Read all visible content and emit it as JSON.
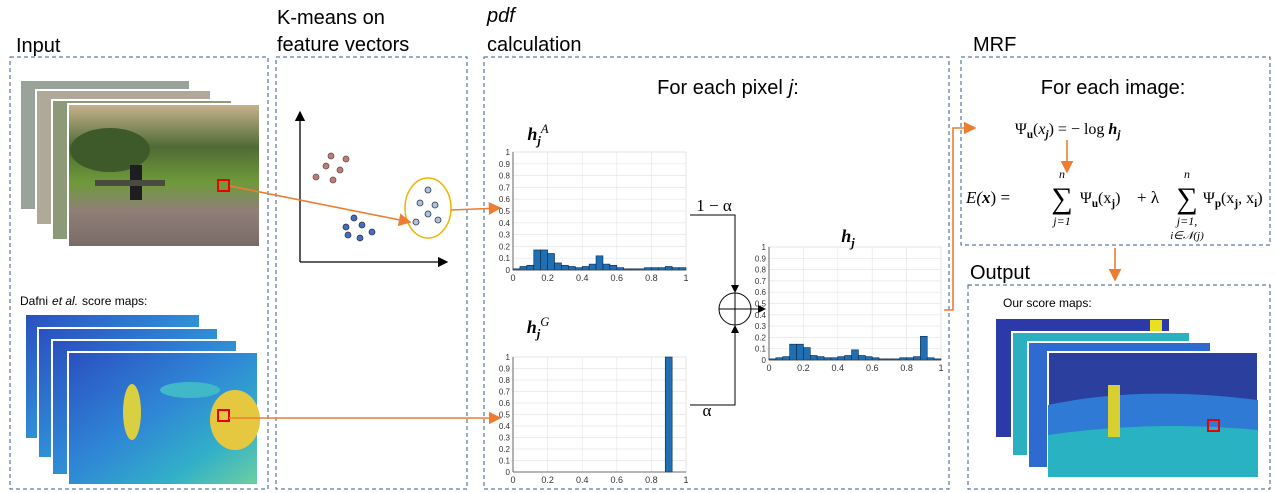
{
  "panels": {
    "input": "Input",
    "kmeans": [
      "K-means on",
      "feature vectors"
    ],
    "pdf": [
      "pdf",
      "calculation"
    ],
    "mrf": "MRF",
    "output": "Output"
  },
  "input_caption": [
    "Dafni",
    "et al.",
    "score maps:"
  ],
  "pixel_heading": [
    "For each pixel",
    "j",
    ":"
  ],
  "image_heading": "For each image:",
  "weights": {
    "upper": "1 − α",
    "lower": "α"
  },
  "output_caption": "Our score maps:",
  "unary": [
    "Ψ",
    "u",
    "(",
    "x",
    "j",
    ") = − log ",
    "h",
    "j"
  ],
  "energy": {
    "lhs": [
      "E(",
      "x",
      ") = "
    ],
    "sum1": {
      "top": "n",
      "symbol": "∑",
      "bottom": "j=1"
    },
    "term1": [
      "Ψ",
      "u",
      "(x",
      "j",
      ")"
    ],
    "plus": "+ λ",
    "sum2": {
      "top": "n",
      "symbol": "∑",
      "bottom": [
        "j=1,",
        "i∈𝒩(j)"
      ]
    },
    "term2": [
      "Ψ",
      "p",
      "(x",
      "j",
      ", x",
      "i",
      ")"
    ]
  },
  "histograms": [
    {
      "title": [
        "h",
        "j",
        "A"
      ],
      "color": "#1f6fb5",
      "bins": [
        0,
        0.04,
        0.08,
        0.12,
        0.16,
        0.2,
        0.24,
        0.28,
        0.32,
        0.36,
        0.4,
        0.44,
        0.48,
        0.52,
        0.56,
        0.6,
        0.64,
        0.68,
        0.72,
        0.76,
        0.8,
        0.84,
        0.88,
        0.92,
        0.96,
        1
      ],
      "counts": [
        0.01,
        0.03,
        0.04,
        0.17,
        0.17,
        0.14,
        0.06,
        0.04,
        0.03,
        0.02,
        0.03,
        0.05,
        0.12,
        0.05,
        0.04,
        0.02,
        0.01,
        0.01,
        0.01,
        0.02,
        0.02,
        0.02,
        0.03,
        0.02,
        0.02
      ],
      "xlim": [
        0,
        1
      ],
      "ylim": [
        0,
        1
      ],
      "xticks": [
        0,
        0.2,
        0.4,
        0.6,
        0.8,
        1
      ],
      "yticks": [
        0,
        0.1,
        0.2,
        0.3,
        0.4,
        0.5,
        0.6,
        0.7,
        0.8,
        0.9,
        1
      ]
    },
    {
      "title": [
        "h",
        "j",
        "G"
      ],
      "color": "#1f6fb5",
      "bins": [
        0,
        0.04,
        0.08,
        0.12,
        0.16,
        0.2,
        0.24,
        0.28,
        0.32,
        0.36,
        0.4,
        0.44,
        0.48,
        0.52,
        0.56,
        0.6,
        0.64,
        0.68,
        0.72,
        0.76,
        0.8,
        0.84,
        0.88,
        0.92,
        0.96,
        1
      ],
      "counts": [
        0,
        0,
        0,
        0,
        0,
        0,
        0,
        0,
        0,
        0,
        0,
        0,
        0,
        0,
        0,
        0,
        0,
        0,
        0,
        0,
        0,
        0,
        1,
        0,
        0
      ],
      "xlim": [
        0,
        1
      ],
      "ylim": [
        0,
        1
      ],
      "xticks": [
        0,
        0.2,
        0.4,
        0.6,
        0.8,
        1
      ],
      "yticks": [
        0,
        0.1,
        0.2,
        0.3,
        0.4,
        0.5,
        0.6,
        0.7,
        0.8,
        0.9,
        1
      ]
    },
    {
      "title": [
        "h",
        "j"
      ],
      "color": "#1f6fb5",
      "bins": [
        0,
        0.04,
        0.08,
        0.12,
        0.16,
        0.2,
        0.24,
        0.28,
        0.32,
        0.36,
        0.4,
        0.44,
        0.48,
        0.52,
        0.56,
        0.6,
        0.64,
        0.68,
        0.72,
        0.76,
        0.8,
        0.84,
        0.88,
        0.92,
        0.96,
        1
      ],
      "counts": [
        0.01,
        0.02,
        0.03,
        0.14,
        0.14,
        0.11,
        0.04,
        0.03,
        0.02,
        0.02,
        0.03,
        0.04,
        0.09,
        0.04,
        0.03,
        0.02,
        0.01,
        0.01,
        0.01,
        0.02,
        0.02,
        0.03,
        0.21,
        0.02,
        0.01
      ],
      "xlim": [
        0,
        1
      ],
      "ylim": [
        0,
        1
      ],
      "xticks": [
        0,
        0.2,
        0.4,
        0.6,
        0.8,
        1
      ],
      "yticks": [
        0,
        0.1,
        0.2,
        0.3,
        0.4,
        0.5,
        0.6,
        0.7,
        0.8,
        0.9,
        1
      ]
    }
  ]
}
